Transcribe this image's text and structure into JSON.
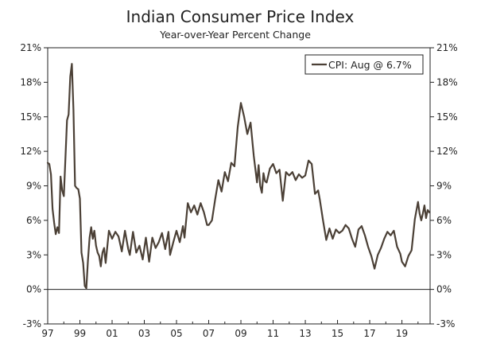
{
  "chart_data": {
    "type": "line",
    "title": "Indian Consumer Price Index",
    "subtitle": "Year-over-Year Percent Change",
    "xlabel": "",
    "ylabel": "",
    "xlim": [
      1997.0,
      2020.75
    ],
    "ylim": [
      -3,
      21
    ],
    "y_ticks": [
      21,
      18,
      15,
      12,
      9,
      6,
      3,
      0,
      -3
    ],
    "y_tick_labels": [
      "21%",
      "18%",
      "15%",
      "12%",
      "9%",
      "6%",
      "3%",
      "0%",
      "-3%"
    ],
    "x_tick_values": [
      1997,
      1999,
      2001,
      2003,
      2005,
      2007,
      2009,
      2011,
      2013,
      2015,
      2017,
      2019
    ],
    "x_tick_labels": [
      "97",
      "99",
      "01",
      "03",
      "05",
      "07",
      "09",
      "11",
      "13",
      "15",
      "17",
      "19"
    ],
    "grid": false,
    "legend": {
      "position": "top-right",
      "label": "CPI: Aug @ 6.7%"
    },
    "colors": {
      "line": "#4b4036",
      "axis": "#222222",
      "zero_line": "#222222"
    },
    "series": [
      {
        "name": "CPI: Aug @ 6.7%",
        "x": [
          1997.0,
          1997.1,
          1997.2,
          1997.3,
          1997.4,
          1997.5,
          1997.6,
          1997.7,
          1997.8,
          1997.9,
          1998.0,
          1998.1,
          1998.2,
          1998.3,
          1998.4,
          1998.5,
          1998.6,
          1998.7,
          1998.8,
          1998.9,
          1999.0,
          1999.1,
          1999.2,
          1999.3,
          1999.4,
          1999.5,
          1999.6,
          1999.7,
          1999.8,
          1999.9,
          2000.0,
          2000.1,
          2000.2,
          2000.3,
          2000.4,
          2000.5,
          2000.6,
          2000.8,
          2001.0,
          2001.2,
          2001.4,
          2001.6,
          2001.8,
          2002.0,
          2002.1,
          2002.3,
          2002.5,
          2002.7,
          2002.9,
          2003.1,
          2003.3,
          2003.5,
          2003.7,
          2003.9,
          2004.1,
          2004.3,
          2004.5,
          2004.6,
          2004.8,
          2005.0,
          2005.2,
          2005.4,
          2005.5,
          2005.7,
          2005.9,
          2006.1,
          2006.3,
          2006.5,
          2006.7,
          2006.9,
          2007.0,
          2007.2,
          2007.4,
          2007.6,
          2007.8,
          2008.0,
          2008.2,
          2008.4,
          2008.6,
          2008.8,
          2009.0,
          2009.2,
          2009.4,
          2009.6,
          2009.8,
          2010.0,
          2010.1,
          2010.2,
          2010.3,
          2010.4,
          2010.5,
          2010.6,
          2010.8,
          2011.0,
          2011.2,
          2011.4,
          2011.6,
          2011.8,
          2012.0,
          2012.2,
          2012.4,
          2012.6,
          2012.8,
          2013.0,
          2013.2,
          2013.4,
          2013.6,
          2013.8,
          2013.9,
          2014.1,
          2014.3,
          2014.5,
          2014.7,
          2014.9,
          2015.1,
          2015.3,
          2015.5,
          2015.7,
          2015.9,
          2016.1,
          2016.3,
          2016.5,
          2016.7,
          2016.9,
          2017.1,
          2017.3,
          2017.5,
          2017.7,
          2017.9,
          2018.1,
          2018.3,
          2018.5,
          2018.7,
          2018.9,
          2019.0,
          2019.2,
          2019.4,
          2019.6,
          2019.8,
          2020.0,
          2020.1,
          2020.2,
          2020.3,
          2020.4,
          2020.5,
          2020.6,
          2020.7
        ],
        "values": [
          11.0,
          10.9,
          10.0,
          7.0,
          5.8,
          4.8,
          5.4,
          4.9,
          9.8,
          8.6,
          8.1,
          11.4,
          14.7,
          15.2,
          18.5,
          19.6,
          15.6,
          9.0,
          8.8,
          8.7,
          7.9,
          3.2,
          2.3,
          0.3,
          0.1,
          2.5,
          4.5,
          5.4,
          4.4,
          5.1,
          3.8,
          3.2,
          2.9,
          2.0,
          3.2,
          3.6,
          2.3,
          5.1,
          4.4,
          5.0,
          4.6,
          3.3,
          5.1,
          3.5,
          3.0,
          5.0,
          3.2,
          3.8,
          2.6,
          4.5,
          2.4,
          4.5,
          3.6,
          4.1,
          4.9,
          3.5,
          5.0,
          3.0,
          4.1,
          5.1,
          4.1,
          5.5,
          4.5,
          7.5,
          6.7,
          7.3,
          6.5,
          7.5,
          6.7,
          5.6,
          5.6,
          6.0,
          7.8,
          9.5,
          8.5,
          10.2,
          9.4,
          11.0,
          10.7,
          14.1,
          16.2,
          15.0,
          13.5,
          14.5,
          11.6,
          9.3,
          10.8,
          9.0,
          8.4,
          10.1,
          9.4,
          9.3,
          10.5,
          10.9,
          10.1,
          10.4,
          7.7,
          10.2,
          9.9,
          10.2,
          9.5,
          10.0,
          9.7,
          9.9,
          11.2,
          10.9,
          8.3,
          8.6,
          7.8,
          6.0,
          4.3,
          5.3,
          4.4,
          5.2,
          4.9,
          5.1,
          5.6,
          5.3,
          4.4,
          3.7,
          5.2,
          5.5,
          4.7,
          3.7,
          2.9,
          1.8,
          3.0,
          3.6,
          4.4,
          5.0,
          4.7,
          5.1,
          3.7,
          3.1,
          2.4,
          2.0,
          2.9,
          3.4,
          6.1,
          7.6,
          6.6,
          6.0,
          6.6,
          7.3,
          6.2,
          6.9,
          6.7
        ]
      }
    ]
  }
}
